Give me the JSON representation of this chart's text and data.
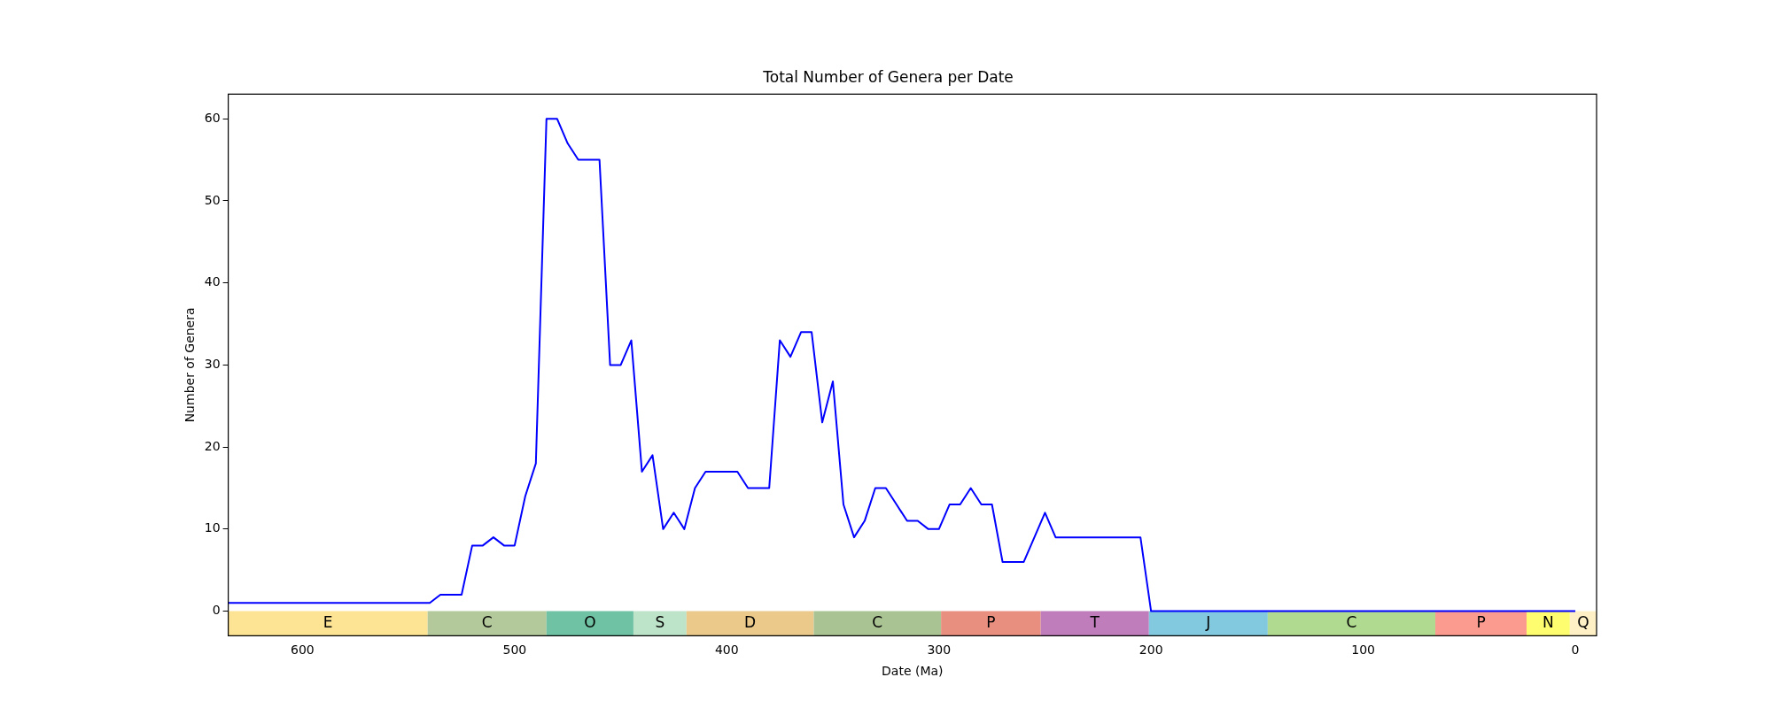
{
  "chart_data": {
    "type": "line",
    "title": "Total Number of Genera per Date",
    "xlabel": "Date (Ma)",
    "ylabel": "Number of Genera",
    "x": [
      635,
      630,
      625,
      620,
      615,
      610,
      605,
      600,
      595,
      590,
      585,
      580,
      575,
      570,
      565,
      560,
      555,
      550,
      545,
      540,
      535,
      530,
      525,
      520,
      515,
      510,
      505,
      500,
      495,
      490,
      485,
      480,
      475,
      470,
      465,
      460,
      455,
      450,
      445,
      440,
      435,
      430,
      425,
      420,
      415,
      410,
      405,
      400,
      395,
      390,
      385,
      380,
      375,
      370,
      365,
      360,
      355,
      350,
      345,
      340,
      335,
      330,
      325,
      320,
      315,
      310,
      305,
      300,
      295,
      290,
      285,
      280,
      275,
      270,
      265,
      260,
      255,
      250,
      245,
      240,
      235,
      230,
      225,
      220,
      215,
      210,
      205,
      200,
      195,
      190,
      185,
      180,
      175,
      170,
      165,
      160,
      155,
      150,
      145,
      140,
      135,
      130,
      125,
      120,
      115,
      110,
      105,
      100,
      95,
      90,
      85,
      80,
      75,
      70,
      65,
      60,
      55,
      50,
      45,
      40,
      35,
      30,
      25,
      20,
      15,
      10,
      5,
      0
    ],
    "series": [
      {
        "color": "#0000ff",
        "values": [
          1,
          1,
          1,
          1,
          1,
          1,
          1,
          1,
          1,
          1,
          1,
          1,
          1,
          1,
          1,
          1,
          1,
          1,
          1,
          1,
          2,
          2,
          2,
          8,
          8,
          9,
          8,
          8,
          14,
          18,
          60,
          60,
          57,
          55,
          55,
          55,
          30,
          30,
          33,
          17,
          19,
          10,
          12,
          10,
          15,
          17,
          17,
          17,
          17,
          15,
          15,
          15,
          33,
          31,
          34,
          34,
          23,
          28,
          13,
          9,
          11,
          15,
          15,
          13,
          11,
          11,
          10,
          10,
          13,
          13,
          15,
          13,
          13,
          6,
          6,
          6,
          9,
          12,
          9,
          9,
          9,
          9,
          9,
          9,
          9,
          9,
          9,
          0,
          0,
          0,
          0,
          0,
          0,
          0,
          0,
          0,
          0,
          0,
          0,
          0,
          0,
          0,
          0,
          0,
          0,
          0,
          0,
          0,
          0,
          0,
          0,
          0,
          0,
          0,
          0,
          0,
          0,
          0,
          0,
          0,
          0,
          0,
          0,
          0,
          0,
          0,
          0,
          0
        ]
      }
    ],
    "xlim": [
      635,
      -10
    ],
    "xticks": [
      600,
      500,
      400,
      300,
      200,
      100,
      0
    ],
    "ylim": [
      -3,
      63
    ],
    "yticks": [
      0,
      10,
      20,
      30,
      40,
      50,
      60
    ],
    "grid": false,
    "legend": false,
    "marker": "none",
    "line_style": "solid",
    "bands": [
      {
        "axis": "x",
        "from": 635,
        "to": 541,
        "label": "E",
        "color": "#fde394"
      },
      {
        "axis": "x",
        "from": 541,
        "to": 485,
        "label": "C",
        "color": "#b3c99b"
      },
      {
        "axis": "x",
        "from": 485,
        "to": 444,
        "label": "O",
        "color": "#6fc2a4"
      },
      {
        "axis": "x",
        "from": 444,
        "to": 419,
        "label": "S",
        "color": "#bde4c9"
      },
      {
        "axis": "x",
        "from": 419,
        "to": 359,
        "label": "D",
        "color": "#eac98b"
      },
      {
        "axis": "x",
        "from": 359,
        "to": 299,
        "label": "C",
        "color": "#aac393"
      },
      {
        "axis": "x",
        "from": 299,
        "to": 252,
        "label": "P",
        "color": "#e88f80"
      },
      {
        "axis": "x",
        "from": 252,
        "to": 201,
        "label": "T",
        "color": "#bf7ebb"
      },
      {
        "axis": "x",
        "from": 201,
        "to": 145,
        "label": "J",
        "color": "#82c8df"
      },
      {
        "axis": "x",
        "from": 145,
        "to": 66,
        "label": "C",
        "color": "#b0da8f"
      },
      {
        "axis": "x",
        "from": 66,
        "to": 23,
        "label": "P",
        "color": "#fb9a8f"
      },
      {
        "axis": "x",
        "from": 23,
        "to": 2.6,
        "label": "N",
        "color": "#fefd6f"
      },
      {
        "axis": "x",
        "from": 2.6,
        "to": -10,
        "label": "Q",
        "color": "#fff0c5"
      }
    ]
  }
}
